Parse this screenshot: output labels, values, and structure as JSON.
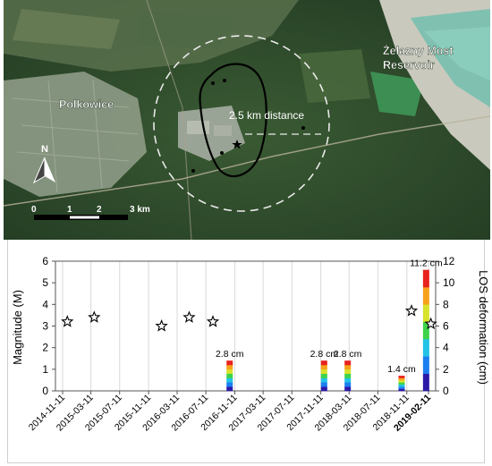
{
  "map": {
    "labels": {
      "town": "Polkowice",
      "reservoir_line1": "Żelazny Most",
      "reservoir_line2": "Reservoir",
      "distance": "2.5 km distance",
      "north": "N"
    },
    "scale_bar": {
      "ticks": [
        "0",
        "1",
        "2",
        "3 km"
      ]
    },
    "colors": {
      "forest": "#2f4f2a",
      "town": "#8b9a86",
      "water": "#7fc0b0",
      "tailings": "#c8c8c0"
    }
  },
  "chart_data": {
    "type": "bar",
    "xlabel": "",
    "ylabel_left": "Magnitude (M)",
    "ylabel_right": "LOS deformation (cm)",
    "ylim_left": [
      0,
      6
    ],
    "ylim_right": [
      0,
      12
    ],
    "yticks_left": [
      "0",
      "1",
      "2",
      "3",
      "4",
      "5",
      "6"
    ],
    "yticks_right": [
      "0",
      "2",
      "4",
      "6",
      "8",
      "10",
      "12"
    ],
    "date_range": [
      "2014-11-11",
      "2019-02-11"
    ],
    "x_ticks": [
      {
        "label": "2014-11-11",
        "date": "2014-11-11"
      },
      {
        "label": "2015-03-11",
        "date": "2015-03-11"
      },
      {
        "label": "2015-07-11",
        "date": "2015-07-11"
      },
      {
        "label": "2015-11-11",
        "date": "2015-11-11"
      },
      {
        "label": "2016-03-11",
        "date": "2016-03-11"
      },
      {
        "label": "2016-07-11",
        "date": "2016-07-11"
      },
      {
        "label": "2016-11-11",
        "date": "2016-11-11"
      },
      {
        "label": "2017-03-11",
        "date": "2017-03-11"
      },
      {
        "label": "2017-07-11",
        "date": "2017-07-11"
      },
      {
        "label": "2017-11-11",
        "date": "2017-11-11"
      },
      {
        "label": "2018-03-11",
        "date": "2018-03-11"
      },
      {
        "label": "2018-07-11",
        "date": "2018-07-11"
      },
      {
        "label": "2018-11-11",
        "date": "2018-11-11"
      },
      {
        "label": "2019-02-11",
        "date": "2019-02-11",
        "bold": true
      }
    ],
    "earthquakes": [
      {
        "date": "2014-12-01",
        "magnitude": 3.2
      },
      {
        "date": "2015-03-25",
        "magnitude": 3.4
      },
      {
        "date": "2016-01-05",
        "magnitude": 3.0
      },
      {
        "date": "2016-05-01",
        "magnitude": 3.4
      },
      {
        "date": "2016-08-10",
        "magnitude": 3.2
      },
      {
        "date": "2018-12-01",
        "magnitude": 3.7
      },
      {
        "date": "2019-02-21",
        "magnitude": 3.1
      }
    ],
    "deformation_bars": [
      {
        "date": "2016-10-20",
        "value_cm": 2.8,
        "label": "2.8 cm"
      },
      {
        "date": "2017-11-25",
        "value_cm": 2.8,
        "label": "2.8 cm"
      },
      {
        "date": "2018-03-05",
        "value_cm": 2.8,
        "label": "2.8 cm"
      },
      {
        "date": "2018-10-20",
        "value_cm": 1.4,
        "label": "1.4 cm"
      },
      {
        "date": "2019-02-01",
        "value_cm": 11.2,
        "label": "11.2 cm"
      }
    ],
    "colormap": [
      "#2b1aa8",
      "#1c7ef0",
      "#22c3e6",
      "#3fd34a",
      "#d6e32a",
      "#f7a21a",
      "#e8231f"
    ]
  }
}
